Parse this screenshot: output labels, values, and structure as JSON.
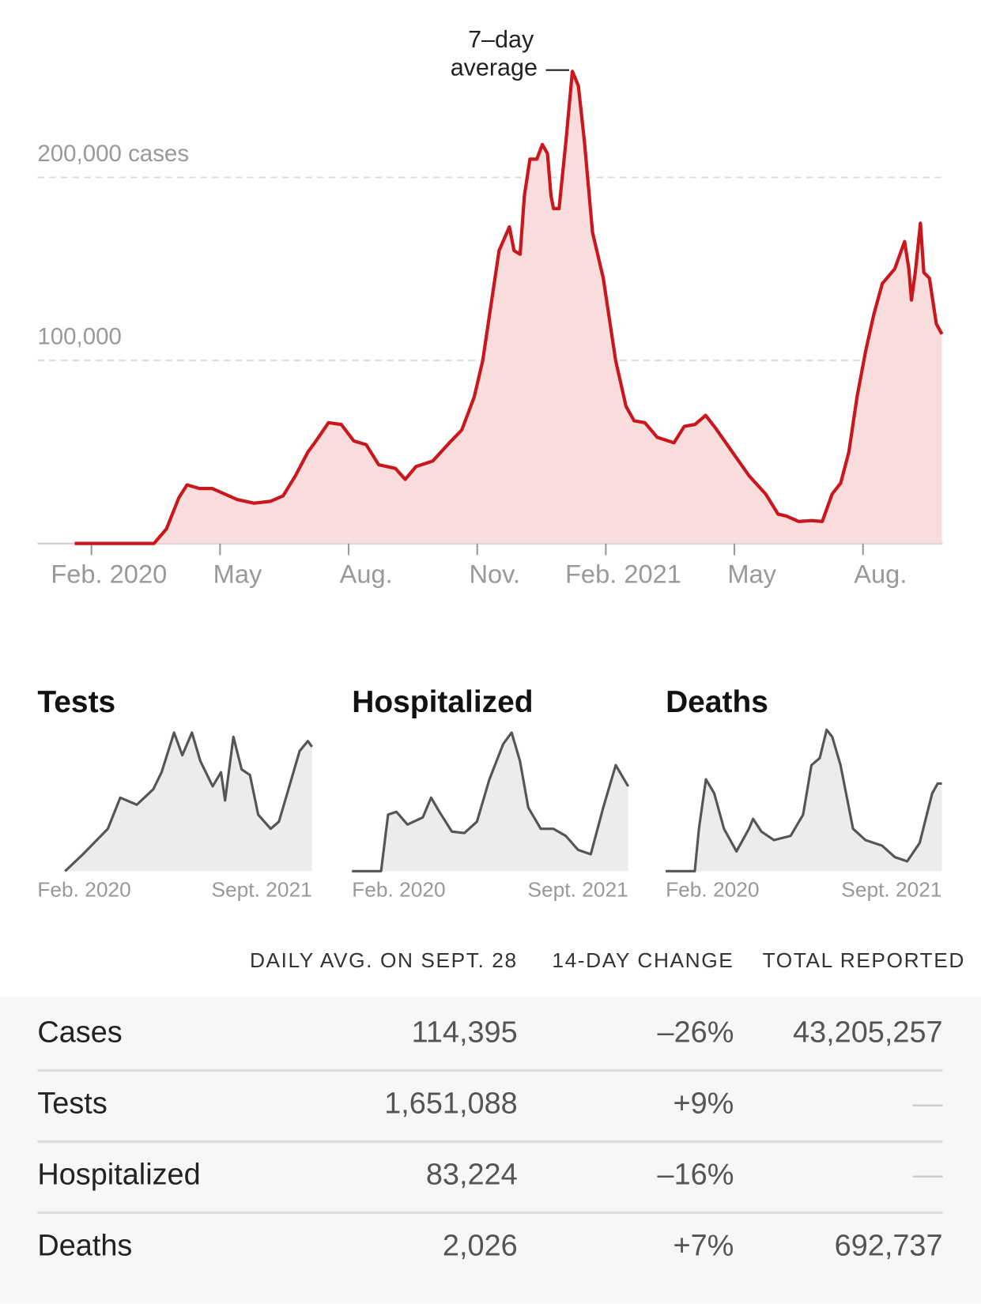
{
  "chart_data": [
    {
      "type": "area",
      "annotation": [
        "7–day",
        "average"
      ],
      "color": "#c8181e",
      "fill": "#f9dcdc",
      "xlim": [
        -1.26,
        19.86
      ],
      "xticks": [
        {
          "value": 0,
          "label": "Feb. 2020"
        },
        {
          "value": 3,
          "label": "May"
        },
        {
          "value": 6,
          "label": "Aug."
        },
        {
          "value": 9,
          "label": "Nov."
        },
        {
          "value": 12,
          "label": "Feb. 2021"
        },
        {
          "value": 15,
          "label": "May"
        },
        {
          "value": 18,
          "label": "Aug."
        }
      ],
      "ylim": [
        0,
        280000
      ],
      "yticks": [
        {
          "value": 100000,
          "label": "100,000"
        },
        {
          "value": 200000,
          "label": "200,000 cases"
        }
      ],
      "grid": true,
      "x": [
        -0.39,
        1.46,
        1.75,
        2.04,
        2.23,
        2.52,
        2.82,
        3.11,
        3.4,
        3.79,
        4.17,
        4.47,
        4.76,
        5.05,
        5.24,
        5.53,
        5.83,
        6.12,
        6.41,
        6.7,
        7.09,
        7.32,
        7.57,
        7.96,
        8.35,
        8.64,
        8.93,
        9.13,
        9.32,
        9.51,
        9.75,
        9.86,
        10.0,
        10.1,
        10.23,
        10.39,
        10.52,
        10.64,
        10.72,
        10.78,
        10.91,
        11.07,
        11.22,
        11.36,
        11.5,
        11.69,
        11.94,
        12.23,
        12.47,
        12.66,
        12.91,
        13.2,
        13.59,
        13.83,
        14.08,
        14.33,
        14.56,
        14.95,
        15.34,
        15.73,
        16.02,
        16.21,
        16.5,
        16.8,
        17.05,
        17.28,
        17.48,
        17.67,
        17.86,
        18.06,
        18.25,
        18.45,
        18.74,
        18.97,
        19.07,
        19.13,
        19.22,
        19.34,
        19.42,
        19.55,
        19.71,
        19.84
      ],
      "values": [
        0,
        0,
        8000,
        25000,
        32000,
        30000,
        30000,
        27000,
        24000,
        22000,
        23000,
        26000,
        37000,
        50000,
        56000,
        66000,
        65000,
        56000,
        54000,
        43000,
        41000,
        35000,
        42000,
        45000,
        55000,
        62000,
        80000,
        100000,
        130000,
        160000,
        173000,
        160000,
        158000,
        190000,
        210000,
        210000,
        218000,
        213000,
        190000,
        183000,
        183000,
        220000,
        258000,
        250000,
        220000,
        170000,
        145000,
        100000,
        75000,
        67000,
        66000,
        58000,
        55000,
        64000,
        65000,
        70000,
        63000,
        50000,
        37000,
        27000,
        16000,
        15000,
        12000,
        12500,
        12000,
        27000,
        33000,
        50000,
        80000,
        105000,
        125000,
        142000,
        150000,
        165000,
        150000,
        133000,
        148000,
        175000,
        148000,
        145000,
        120000,
        114395
      ]
    },
    {
      "type": "area",
      "title": "Tests",
      "color": "#555555",
      "fill": "#ececec",
      "xlim": [
        0,
        19.9
      ],
      "ylim": [
        0,
        100
      ],
      "xticks": [
        {
          "value": 0,
          "label": "Feb. 2020"
        },
        {
          "value": 19.9,
          "label": "Sept. 2021"
        }
      ],
      "x": [
        2.0,
        3.3,
        5.1,
        6.0,
        7.2,
        8.4,
        9.0,
        9.9,
        10.5,
        11.2,
        11.8,
        12.7,
        13.3,
        13.6,
        14.2,
        14.8,
        15.4,
        16.0,
        16.9,
        17.5,
        18.1,
        19.0,
        19.6,
        19.9
      ],
      "values": [
        0,
        12,
        30,
        52,
        47,
        58,
        70,
        98,
        82,
        98,
        78,
        60,
        70,
        50,
        95,
        72,
        68,
        40,
        30,
        35,
        55,
        85,
        92,
        88
      ]
    },
    {
      "type": "area",
      "title": "Hospitalized",
      "color": "#555555",
      "fill": "#ececec",
      "xlim": [
        0,
        19.9
      ],
      "ylim": [
        0,
        100
      ],
      "xticks": [
        {
          "value": 0,
          "label": "Feb. 2020"
        },
        {
          "value": 19.9,
          "label": "Sept. 2021"
        }
      ],
      "x": [
        0,
        2.1,
        2.6,
        3.2,
        4.0,
        5.1,
        5.7,
        6.3,
        7.2,
        8.1,
        9.0,
        9.9,
        10.9,
        11.5,
        12.1,
        12.7,
        13.6,
        14.5,
        15.4,
        16.3,
        17.2,
        18.1,
        19.0,
        19.9
      ],
      "values": [
        0,
        0,
        40,
        42,
        33,
        38,
        52,
        42,
        28,
        27,
        35,
        65,
        90,
        98,
        78,
        45,
        30,
        30,
        25,
        15,
        12,
        45,
        75,
        60
      ]
    },
    {
      "type": "area",
      "title": "Deaths",
      "color": "#555555",
      "fill": "#ececec",
      "xlim": [
        0,
        19.9
      ],
      "ylim": [
        0,
        100
      ],
      "xticks": [
        {
          "value": 0,
          "label": "Feb. 2020"
        },
        {
          "value": 19.9,
          "label": "Sept. 2021"
        }
      ],
      "x": [
        0,
        2.1,
        2.4,
        2.9,
        3.5,
        4.2,
        5.1,
        6.0,
        6.3,
        6.9,
        7.8,
        9.0,
        9.9,
        10.5,
        11.1,
        11.6,
        12.0,
        12.6,
        13.5,
        14.4,
        15.6,
        16.5,
        17.4,
        18.3,
        19.2,
        19.6,
        19.9
      ],
      "values": [
        0,
        0,
        30,
        65,
        55,
        30,
        14,
        30,
        37,
        28,
        22,
        25,
        40,
        75,
        80,
        100,
        95,
        75,
        30,
        22,
        18,
        10,
        7,
        20,
        55,
        62,
        62
      ]
    }
  ],
  "table": {
    "columns": [
      "DAILY AVG. ON SEPT. 28",
      "14-DAY CHANGE",
      "TOTAL REPORTED"
    ],
    "rows": [
      [
        "Cases",
        "114,395",
        "–26%",
        "43,205,257"
      ],
      [
        "Tests",
        "1,651,088",
        "+9%",
        "—"
      ],
      [
        "Hospitalized",
        "83,224",
        "–16%",
        "—"
      ],
      [
        "Deaths",
        "2,026",
        "+7%",
        "692,737"
      ]
    ]
  }
}
